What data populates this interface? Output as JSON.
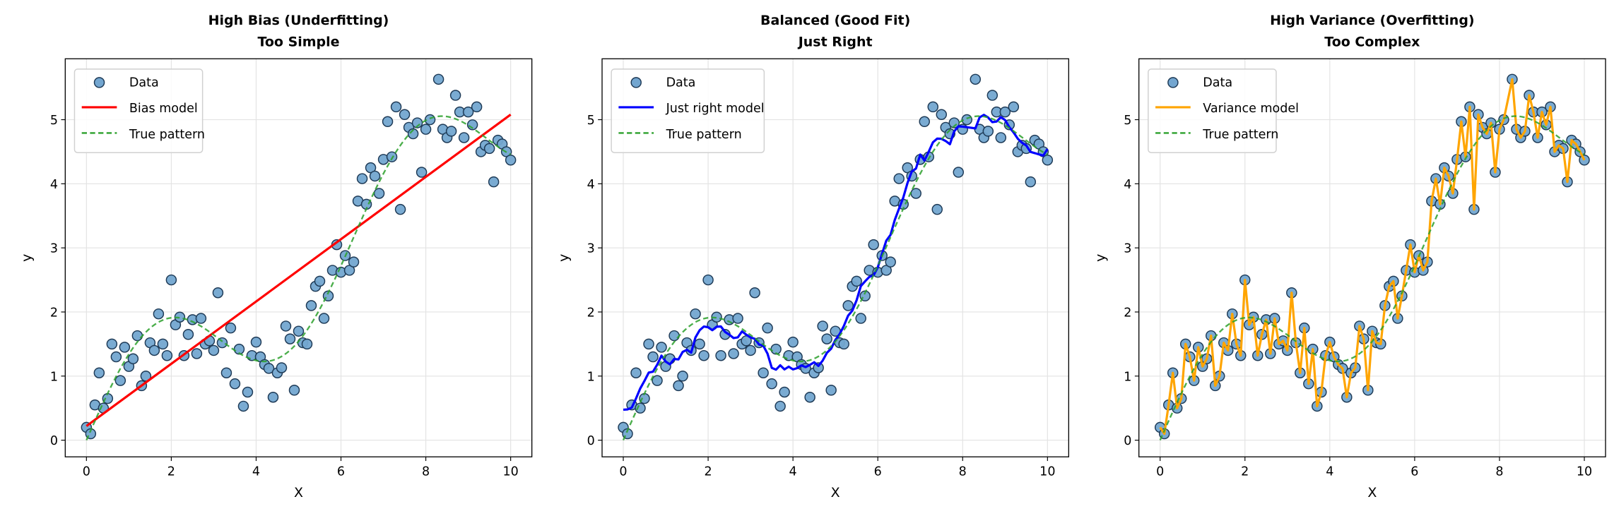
{
  "chart_data": [
    {
      "type": "scatter+line",
      "title": [
        "High Bias (Underfitting)",
        "Too Simple"
      ],
      "xlabel": "X",
      "ylabel": "y",
      "xlim": [
        -0.5,
        10.5
      ],
      "ylim": [
        -0.26,
        5.95
      ],
      "xticks": [
        0,
        2,
        4,
        6,
        8,
        10
      ],
      "yticks": [
        0,
        1,
        2,
        3,
        4,
        5
      ],
      "grid": true,
      "legend_placement": "top-left",
      "legend": [
        "Data",
        "Bias model",
        "True pattern"
      ],
      "model": {
        "kind": "linear",
        "x": [
          0,
          10
        ],
        "y": [
          0.22,
          5.08
        ],
        "color": "#ff0000"
      }
    },
    {
      "type": "scatter+line",
      "title": [
        "Balanced (Good Fit)",
        "Just Right"
      ],
      "xlabel": "X",
      "ylabel": "y",
      "xlim": [
        -0.5,
        10.5
      ],
      "ylim": [
        -0.26,
        5.95
      ],
      "xticks": [
        0,
        2,
        4,
        6,
        8,
        10
      ],
      "yticks": [
        0,
        1,
        2,
        3,
        4,
        5
      ],
      "grid": true,
      "legend_placement": "top-left",
      "legend": [
        "Data",
        "Just right model",
        "True pattern"
      ],
      "model": {
        "kind": "smooth",
        "window": 7,
        "color": "#0000ff"
      }
    },
    {
      "type": "scatter+line",
      "title": [
        "High Variance (Overfitting)",
        "Too Complex"
      ],
      "xlabel": "X",
      "ylabel": "y",
      "xlim": [
        -0.5,
        10.5
      ],
      "ylim": [
        -0.26,
        5.95
      ],
      "xticks": [
        0,
        2,
        4,
        6,
        8,
        10
      ],
      "yticks": [
        0,
        1,
        2,
        3,
        4,
        5
      ],
      "grid": true,
      "legend_placement": "top-left",
      "legend": [
        "Data",
        "Variance model",
        "True pattern"
      ],
      "model": {
        "kind": "interpolate",
        "color": "#ffa500"
      }
    }
  ],
  "shared": {
    "true_pattern": "y = 0.5x + sin(x)",
    "true_color": "#2ca02c",
    "point_fill": "#73a6d0",
    "point_edge": "#1e3a56",
    "data": [
      [
        0.0,
        0.2
      ],
      [
        0.1,
        0.1
      ],
      [
        0.2,
        0.55
      ],
      [
        0.3,
        1.05
      ],
      [
        0.4,
        0.5
      ],
      [
        0.5,
        0.65
      ],
      [
        0.6,
        1.5
      ],
      [
        0.7,
        1.3
      ],
      [
        0.8,
        0.93
      ],
      [
        0.9,
        1.45
      ],
      [
        1.0,
        1.15
      ],
      [
        1.1,
        1.27
      ],
      [
        1.2,
        1.63
      ],
      [
        1.3,
        0.85
      ],
      [
        1.4,
        1.0
      ],
      [
        1.5,
        1.52
      ],
      [
        1.6,
        1.4
      ],
      [
        1.7,
        1.97
      ],
      [
        1.8,
        1.5
      ],
      [
        1.9,
        1.32
      ],
      [
        2.0,
        2.5
      ],
      [
        2.1,
        1.8
      ],
      [
        2.2,
        1.92
      ],
      [
        2.3,
        1.32
      ],
      [
        2.4,
        1.65
      ],
      [
        2.5,
        1.88
      ],
      [
        2.6,
        1.35
      ],
      [
        2.7,
        1.9
      ],
      [
        2.8,
        1.5
      ],
      [
        2.9,
        1.55
      ],
      [
        3.0,
        1.4
      ],
      [
        3.1,
        2.3
      ],
      [
        3.2,
        1.52
      ],
      [
        3.3,
        1.05
      ],
      [
        3.4,
        1.75
      ],
      [
        3.5,
        0.88
      ],
      [
        3.6,
        1.42
      ],
      [
        3.7,
        0.53
      ],
      [
        3.8,
        0.75
      ],
      [
        3.9,
        1.32
      ],
      [
        4.0,
        1.53
      ],
      [
        4.1,
        1.3
      ],
      [
        4.2,
        1.18
      ],
      [
        4.3,
        1.12
      ],
      [
        4.4,
        0.67
      ],
      [
        4.5,
        1.05
      ],
      [
        4.6,
        1.13
      ],
      [
        4.7,
        1.78
      ],
      [
        4.8,
        1.58
      ],
      [
        4.9,
        0.78
      ],
      [
        5.0,
        1.7
      ],
      [
        5.1,
        1.52
      ],
      [
        5.2,
        1.5
      ],
      [
        5.3,
        2.1
      ],
      [
        5.4,
        2.4
      ],
      [
        5.5,
        2.48
      ],
      [
        5.6,
        1.9
      ],
      [
        5.7,
        2.25
      ],
      [
        5.8,
        2.65
      ],
      [
        5.9,
        3.05
      ],
      [
        6.0,
        2.62
      ],
      [
        6.1,
        2.88
      ],
      [
        6.2,
        2.65
      ],
      [
        6.3,
        2.78
      ],
      [
        6.4,
        3.73
      ],
      [
        6.5,
        4.08
      ],
      [
        6.6,
        3.68
      ],
      [
        6.7,
        4.25
      ],
      [
        6.8,
        4.12
      ],
      [
        6.9,
        3.85
      ],
      [
        7.0,
        4.38
      ],
      [
        7.1,
        4.97
      ],
      [
        7.2,
        4.42
      ],
      [
        7.3,
        5.2
      ],
      [
        7.4,
        3.6
      ],
      [
        7.5,
        5.08
      ],
      [
        7.6,
        4.88
      ],
      [
        7.7,
        4.78
      ],
      [
        7.8,
        4.95
      ],
      [
        7.9,
        4.18
      ],
      [
        8.0,
        4.85
      ],
      [
        8.1,
        5.0
      ],
      [
        8.3,
        5.63
      ],
      [
        8.4,
        4.85
      ],
      [
        8.5,
        4.72
      ],
      [
        8.6,
        4.82
      ],
      [
        8.7,
        5.38
      ],
      [
        8.8,
        5.12
      ],
      [
        8.9,
        4.72
      ],
      [
        9.0,
        5.12
      ],
      [
        9.1,
        4.92
      ],
      [
        9.2,
        5.2
      ],
      [
        9.3,
        4.5
      ],
      [
        9.4,
        4.6
      ],
      [
        9.5,
        4.55
      ],
      [
        9.6,
        4.03
      ],
      [
        9.7,
        4.68
      ],
      [
        9.8,
        4.62
      ],
      [
        9.9,
        4.5
      ],
      [
        10.0,
        4.37
      ]
    ]
  }
}
